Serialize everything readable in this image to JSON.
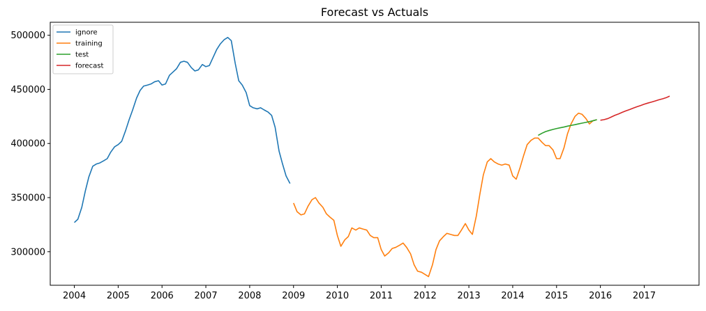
{
  "chart_data": {
    "type": "line",
    "title": "Forecast vs Actuals",
    "xlabel": "",
    "ylabel": "",
    "xlim": [
      2003.45,
      2018.25
    ],
    "ylim": [
      269000,
      512000
    ],
    "x_ticks": [
      2004,
      2005,
      2006,
      2007,
      2008,
      2009,
      2010,
      2011,
      2012,
      2013,
      2014,
      2015,
      2016,
      2017
    ],
    "x_tick_labels": [
      "2004",
      "2005",
      "2006",
      "2007",
      "2008",
      "2009",
      "2010",
      "2011",
      "2012",
      "2013",
      "2014",
      "2015",
      "2016",
      "2017"
    ],
    "y_ticks": [
      300000,
      350000,
      400000,
      450000,
      500000
    ],
    "y_tick_labels": [
      "300000",
      "350000",
      "400000",
      "450000",
      "500000"
    ],
    "grid": false,
    "legend_position": "upper-left",
    "series": [
      {
        "name": "ignore",
        "color": "#1f77b4",
        "x": [
          2004.0,
          2004.08,
          2004.17,
          2004.25,
          2004.33,
          2004.42,
          2004.5,
          2004.58,
          2004.67,
          2004.75,
          2004.83,
          2004.92,
          2005.0,
          2005.08,
          2005.17,
          2005.25,
          2005.33,
          2005.42,
          2005.5,
          2005.58,
          2005.67,
          2005.75,
          2005.83,
          2005.92,
          2006.0,
          2006.08,
          2006.17,
          2006.25,
          2006.33,
          2006.42,
          2006.5,
          2006.58,
          2006.67,
          2006.75,
          2006.83,
          2006.92,
          2007.0,
          2007.08,
          2007.17,
          2007.25,
          2007.33,
          2007.42,
          2007.5,
          2007.58,
          2007.67,
          2007.75,
          2007.83,
          2007.92,
          2008.0,
          2008.08,
          2008.17,
          2008.25,
          2008.33,
          2008.42,
          2008.5,
          2008.58,
          2008.67,
          2008.75,
          2008.83,
          2008.92
        ],
        "y": [
          327000,
          330000,
          341000,
          356000,
          369000,
          379000,
          381000,
          382000,
          384000,
          386000,
          392000,
          397000,
          399000,
          402000,
          412000,
          422000,
          431000,
          442000,
          449000,
          453000,
          454000,
          455000,
          457000,
          458000,
          454000,
          455000,
          463000,
          466000,
          469000,
          475000,
          476000,
          475000,
          470000,
          467000,
          468000,
          473000,
          471000,
          472000,
          480000,
          487000,
          492000,
          496000,
          498000,
          495000,
          474000,
          458000,
          454000,
          447000,
          435000,
          433000,
          432000,
          433000,
          431000,
          429000,
          426000,
          415000,
          393000,
          381000,
          370000,
          363000
        ]
      },
      {
        "name": "training",
        "color": "#ff7f0e",
        "x": [
          2009.0,
          2009.08,
          2009.17,
          2009.25,
          2009.33,
          2009.42,
          2009.5,
          2009.58,
          2009.67,
          2009.75,
          2009.83,
          2009.92,
          2010.0,
          2010.08,
          2010.17,
          2010.25,
          2010.33,
          2010.42,
          2010.5,
          2010.58,
          2010.67,
          2010.75,
          2010.83,
          2010.92,
          2011.0,
          2011.08,
          2011.17,
          2011.25,
          2011.33,
          2011.42,
          2011.5,
          2011.58,
          2011.67,
          2011.75,
          2011.83,
          2011.92,
          2012.0,
          2012.08,
          2012.17,
          2012.25,
          2012.33,
          2012.42,
          2012.5,
          2012.58,
          2012.67,
          2012.75,
          2012.83,
          2012.92,
          2013.0,
          2013.08,
          2013.17,
          2013.25,
          2013.33,
          2013.42,
          2013.5,
          2013.58,
          2013.67,
          2013.75,
          2013.83,
          2013.92,
          2014.0,
          2014.08,
          2014.17,
          2014.25,
          2014.33,
          2014.42,
          2014.5,
          2014.58,
          2014.67,
          2014.75,
          2014.83,
          2014.92,
          2015.0,
          2015.08,
          2015.17,
          2015.25,
          2015.33,
          2015.42,
          2015.5,
          2015.58,
          2015.67,
          2015.75,
          2015.83,
          2015.92
        ],
        "y": [
          345000,
          337000,
          334000,
          335000,
          342000,
          348000,
          350000,
          345000,
          341000,
          335000,
          332000,
          329000,
          315000,
          305000,
          311000,
          314000,
          322000,
          320000,
          322000,
          321000,
          320000,
          315000,
          313000,
          313000,
          302000,
          296000,
          299000,
          303000,
          304000,
          306000,
          308000,
          304000,
          298000,
          288000,
          282000,
          281000,
          279000,
          277000,
          288000,
          302000,
          310000,
          314000,
          317000,
          316000,
          315000,
          315000,
          320000,
          326000,
          320000,
          316000,
          333000,
          353000,
          371000,
          383000,
          386000,
          383000,
          381000,
          380000,
          381000,
          380000,
          370000,
          367000,
          378000,
          389000,
          399000,
          403000,
          405000,
          405000,
          401000,
          398000,
          398000,
          394000,
          386000,
          386000,
          396000,
          409000,
          418000,
          425000,
          428000,
          427000,
          423000,
          418000,
          421000,
          422000
        ]
      },
      {
        "name": "test",
        "color": "#2ca02c",
        "x": [
          2014.58,
          2014.67,
          2014.75,
          2014.83,
          2014.92,
          2015.0,
          2015.08,
          2015.17,
          2015.25,
          2015.33,
          2015.42,
          2015.5,
          2015.58,
          2015.67,
          2015.75,
          2015.83,
          2015.92
        ],
        "y": [
          407500,
          409500,
          411000,
          412000,
          413000,
          413800,
          414500,
          415200,
          416000,
          416700,
          417400,
          418100,
          418800,
          419500,
          420200,
          421000,
          422000
        ]
      },
      {
        "name": "forecast",
        "color": "#d62728",
        "x": [
          2016.0,
          2016.08,
          2016.17,
          2016.25,
          2016.33,
          2016.42,
          2016.5,
          2016.58,
          2016.67,
          2016.75,
          2016.83,
          2016.92,
          2017.0,
          2017.08,
          2017.17,
          2017.25,
          2017.33,
          2017.42,
          2017.5,
          2017.58
        ],
        "y": [
          421500,
          422000,
          423000,
          424500,
          426000,
          427400,
          428800,
          430100,
          431400,
          432700,
          433900,
          435100,
          436300,
          437300,
          438300,
          439300,
          440300,
          441300,
          442300,
          443800
        ]
      }
    ]
  }
}
